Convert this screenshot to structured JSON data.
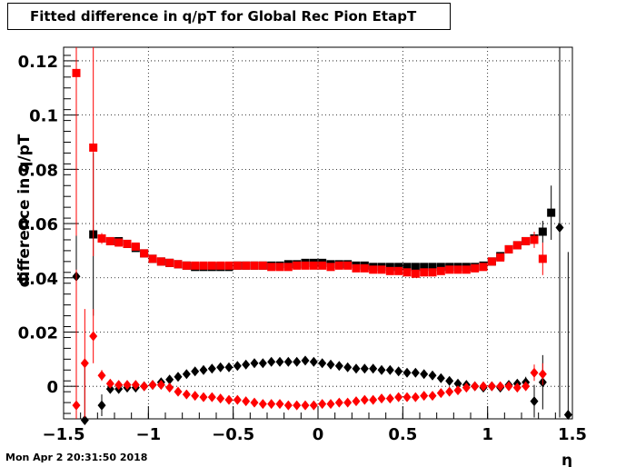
{
  "chart_data": {
    "type": "scatter",
    "title": "Fitted difference in q/pT for Global Rec Pion EtapT",
    "xlabel": "η",
    "ylabel": "difference in q/pT",
    "xlim": [
      -1.5,
      1.5
    ],
    "ylim": [
      -0.012,
      0.125
    ],
    "x_ticks": [
      "−1.5",
      "−1",
      "−0.5",
      "0",
      "0.5",
      "1",
      "1.5"
    ],
    "x_tick_values": [
      -1.5,
      -1,
      -0.5,
      0,
      0.5,
      1,
      1.5
    ],
    "y_ticks": [
      "0",
      "0.02",
      "0.04",
      "0.06",
      "0.08",
      "0.1",
      "0.12"
    ],
    "y_tick_values": [
      0,
      0.02,
      0.04,
      0.06,
      0.08,
      0.1,
      0.12
    ],
    "grid": true,
    "series": [
      {
        "marker": "square",
        "color": "#000000",
        "x": [
          -1.325,
          -1.275,
          -1.225,
          -1.175,
          -1.125,
          -1.075,
          -1.025,
          -0.975,
          -0.925,
          -0.875,
          -0.825,
          -0.775,
          -0.725,
          -0.675,
          -0.625,
          -0.575,
          -0.525,
          -0.475,
          -0.425,
          -0.375,
          -0.325,
          -0.275,
          -0.225,
          -0.175,
          -0.125,
          -0.075,
          -0.025,
          0.025,
          0.075,
          0.125,
          0.175,
          0.225,
          0.275,
          0.325,
          0.375,
          0.425,
          0.475,
          0.525,
          0.575,
          0.625,
          0.675,
          0.725,
          0.775,
          0.825,
          0.875,
          0.925,
          0.975,
          1.025,
          1.075,
          1.125,
          1.175,
          1.225,
          1.275,
          1.325,
          1.375
        ],
        "y": [
          0.056,
          0.0545,
          0.0535,
          0.0535,
          0.0525,
          0.051,
          0.049,
          0.047,
          0.046,
          0.0455,
          0.045,
          0.0445,
          0.044,
          0.044,
          0.044,
          0.044,
          0.044,
          0.0445,
          0.0445,
          0.0445,
          0.0445,
          0.0445,
          0.0445,
          0.045,
          0.045,
          0.0455,
          0.0455,
          0.0455,
          0.045,
          0.045,
          0.045,
          0.0445,
          0.0445,
          0.044,
          0.044,
          0.044,
          0.044,
          0.044,
          0.044,
          0.044,
          0.044,
          0.044,
          0.044,
          0.044,
          0.044,
          0.044,
          0.0445,
          0.046,
          0.048,
          0.0505,
          0.052,
          0.0535,
          0.0545,
          0.057,
          0.064
        ],
        "yerr": [
          0.03,
          0.002,
          0.001,
          0.001,
          0.001,
          0.001,
          0.001,
          0.001,
          0.001,
          0.001,
          0.001,
          0.001,
          0.001,
          0.001,
          0.001,
          0.001,
          0.001,
          0.001,
          0.001,
          0.001,
          0.001,
          0.001,
          0.001,
          0.001,
          0.001,
          0.001,
          0.001,
          0.001,
          0.001,
          0.001,
          0.001,
          0.001,
          0.001,
          0.001,
          0.001,
          0.001,
          0.001,
          0.001,
          0.001,
          0.001,
          0.001,
          0.001,
          0.001,
          0.001,
          0.001,
          0.001,
          0.001,
          0.001,
          0.001,
          0.001,
          0.001,
          0.001,
          0.002,
          0.004,
          0.01
        ]
      },
      {
        "marker": "diamond",
        "color": "#000000",
        "x": [
          -1.425,
          -1.375,
          -1.275,
          -1.225,
          -1.175,
          -1.125,
          -1.075,
          -1.025,
          -0.975,
          -0.925,
          -0.875,
          -0.825,
          -0.775,
          -0.725,
          -0.675,
          -0.625,
          -0.575,
          -0.525,
          -0.475,
          -0.425,
          -0.375,
          -0.325,
          -0.275,
          -0.225,
          -0.175,
          -0.125,
          -0.075,
          -0.025,
          0.025,
          0.075,
          0.125,
          0.175,
          0.225,
          0.275,
          0.325,
          0.375,
          0.425,
          0.475,
          0.525,
          0.575,
          0.625,
          0.675,
          0.725,
          0.775,
          0.825,
          0.875,
          0.925,
          0.975,
          1.025,
          1.075,
          1.125,
          1.175,
          1.225,
          1.275,
          1.325,
          1.425,
          1.475
        ],
        "y": [
          0.0405,
          -0.0125,
          -0.007,
          -0.001,
          -0.001,
          -0.0005,
          -0.0005,
          0.0,
          0.0005,
          0.0015,
          0.0025,
          0.0035,
          0.0045,
          0.0055,
          0.006,
          0.0065,
          0.007,
          0.007,
          0.0075,
          0.008,
          0.0085,
          0.0085,
          0.009,
          0.009,
          0.009,
          0.009,
          0.0095,
          0.009,
          0.0085,
          0.008,
          0.0075,
          0.007,
          0.0065,
          0.0065,
          0.0065,
          0.006,
          0.006,
          0.0055,
          0.005,
          0.005,
          0.0045,
          0.004,
          0.003,
          0.002,
          0.001,
          0.0005,
          0.0,
          -0.0005,
          0.0,
          -0.0005,
          0.0005,
          0.001,
          0.0015,
          -0.0055,
          0.0015,
          0.0585,
          -0.0105
        ],
        "yerr": [
          0.03,
          0.02,
          0.004,
          0.001,
          0.001,
          0.001,
          0.001,
          0.001,
          0.001,
          0.001,
          0.001,
          0.001,
          0.001,
          0.001,
          0.001,
          0.001,
          0.001,
          0.001,
          0.001,
          0.001,
          0.001,
          0.001,
          0.001,
          0.001,
          0.001,
          0.001,
          0.001,
          0.001,
          0.001,
          0.001,
          0.001,
          0.001,
          0.001,
          0.001,
          0.001,
          0.001,
          0.001,
          0.001,
          0.001,
          0.001,
          0.001,
          0.001,
          0.001,
          0.001,
          0.001,
          0.001,
          0.001,
          0.001,
          0.001,
          0.001,
          0.001,
          0.001,
          0.002,
          0.006,
          0.01,
          0.07,
          0.06
        ]
      },
      {
        "marker": "square",
        "color": "#ff0000",
        "x": [
          -1.425,
          -1.325,
          -1.275,
          -1.225,
          -1.175,
          -1.125,
          -1.075,
          -1.025,
          -0.975,
          -0.925,
          -0.875,
          -0.825,
          -0.775,
          -0.725,
          -0.675,
          -0.625,
          -0.575,
          -0.525,
          -0.475,
          -0.425,
          -0.375,
          -0.325,
          -0.275,
          -0.225,
          -0.175,
          -0.125,
          -0.075,
          -0.025,
          0.025,
          0.075,
          0.125,
          0.175,
          0.225,
          0.275,
          0.325,
          0.375,
          0.425,
          0.475,
          0.525,
          0.575,
          0.625,
          0.675,
          0.725,
          0.775,
          0.825,
          0.875,
          0.925,
          0.975,
          1.025,
          1.075,
          1.125,
          1.175,
          1.225,
          1.275,
          1.325
        ],
        "y": [
          0.1155,
          0.088,
          0.0545,
          0.0535,
          0.053,
          0.0525,
          0.0515,
          0.049,
          0.047,
          0.046,
          0.0455,
          0.045,
          0.0445,
          0.0445,
          0.0445,
          0.0445,
          0.0445,
          0.0445,
          0.0445,
          0.0445,
          0.0445,
          0.0445,
          0.044,
          0.044,
          0.044,
          0.0445,
          0.0445,
          0.0445,
          0.0445,
          0.044,
          0.0445,
          0.0445,
          0.0435,
          0.0435,
          0.043,
          0.043,
          0.0425,
          0.0425,
          0.042,
          0.0415,
          0.042,
          0.042,
          0.0425,
          0.043,
          0.043,
          0.043,
          0.0435,
          0.044,
          0.046,
          0.0475,
          0.0505,
          0.052,
          0.0535,
          0.054,
          0.047
        ],
        "yerr": [
          0.06,
          0.04,
          0.002,
          0.001,
          0.001,
          0.001,
          0.001,
          0.001,
          0.001,
          0.001,
          0.001,
          0.001,
          0.001,
          0.001,
          0.001,
          0.001,
          0.001,
          0.001,
          0.001,
          0.001,
          0.001,
          0.001,
          0.001,
          0.001,
          0.001,
          0.001,
          0.001,
          0.001,
          0.001,
          0.001,
          0.001,
          0.001,
          0.001,
          0.001,
          0.001,
          0.001,
          0.001,
          0.001,
          0.001,
          0.001,
          0.001,
          0.001,
          0.001,
          0.001,
          0.001,
          0.001,
          0.001,
          0.001,
          0.001,
          0.001,
          0.001,
          0.001,
          0.001,
          0.003,
          0.006
        ]
      },
      {
        "marker": "diamond",
        "color": "#ff0000",
        "x": [
          -1.425,
          -1.375,
          -1.325,
          -1.275,
          -1.225,
          -1.175,
          -1.125,
          -1.075,
          -1.025,
          -0.975,
          -0.925,
          -0.875,
          -0.825,
          -0.775,
          -0.725,
          -0.675,
          -0.625,
          -0.575,
          -0.525,
          -0.475,
          -0.425,
          -0.375,
          -0.325,
          -0.275,
          -0.225,
          -0.175,
          -0.125,
          -0.075,
          -0.025,
          0.025,
          0.075,
          0.125,
          0.175,
          0.225,
          0.275,
          0.325,
          0.375,
          0.425,
          0.475,
          0.525,
          0.575,
          0.625,
          0.675,
          0.725,
          0.775,
          0.825,
          0.875,
          0.925,
          0.975,
          1.025,
          1.075,
          1.125,
          1.175,
          1.225,
          1.275,
          1.325
        ],
        "y": [
          -0.007,
          0.0085,
          0.0185,
          0.004,
          0.001,
          0.0005,
          0.0005,
          0.0005,
          0.0,
          0.0005,
          0.0005,
          -0.0005,
          -0.002,
          -0.003,
          -0.0035,
          -0.004,
          -0.004,
          -0.0045,
          -0.005,
          -0.005,
          -0.0055,
          -0.006,
          -0.0065,
          -0.0065,
          -0.0065,
          -0.007,
          -0.007,
          -0.007,
          -0.007,
          -0.0065,
          -0.0065,
          -0.006,
          -0.006,
          -0.0055,
          -0.005,
          -0.005,
          -0.0045,
          -0.0045,
          -0.004,
          -0.004,
          -0.004,
          -0.0035,
          -0.0035,
          -0.0025,
          -0.002,
          -0.0015,
          -0.0005,
          0.0,
          0.0,
          0.0,
          0.0,
          0.0,
          -0.0005,
          0.0,
          0.005,
          0.0045
        ],
        "yerr": [
          0.05,
          0.02,
          0.01,
          0.002,
          0.001,
          0.001,
          0.001,
          0.001,
          0.001,
          0.001,
          0.001,
          0.001,
          0.001,
          0.001,
          0.001,
          0.001,
          0.001,
          0.001,
          0.001,
          0.001,
          0.001,
          0.001,
          0.001,
          0.001,
          0.001,
          0.001,
          0.001,
          0.001,
          0.001,
          0.001,
          0.001,
          0.001,
          0.001,
          0.001,
          0.001,
          0.001,
          0.001,
          0.001,
          0.001,
          0.001,
          0.001,
          0.001,
          0.001,
          0.001,
          0.001,
          0.001,
          0.001,
          0.001,
          0.001,
          0.001,
          0.001,
          0.001,
          0.001,
          0.001,
          0.003,
          0.004
        ]
      }
    ]
  },
  "footer": {
    "timestamp": "Mon Apr  2 20:31:50 2018"
  }
}
